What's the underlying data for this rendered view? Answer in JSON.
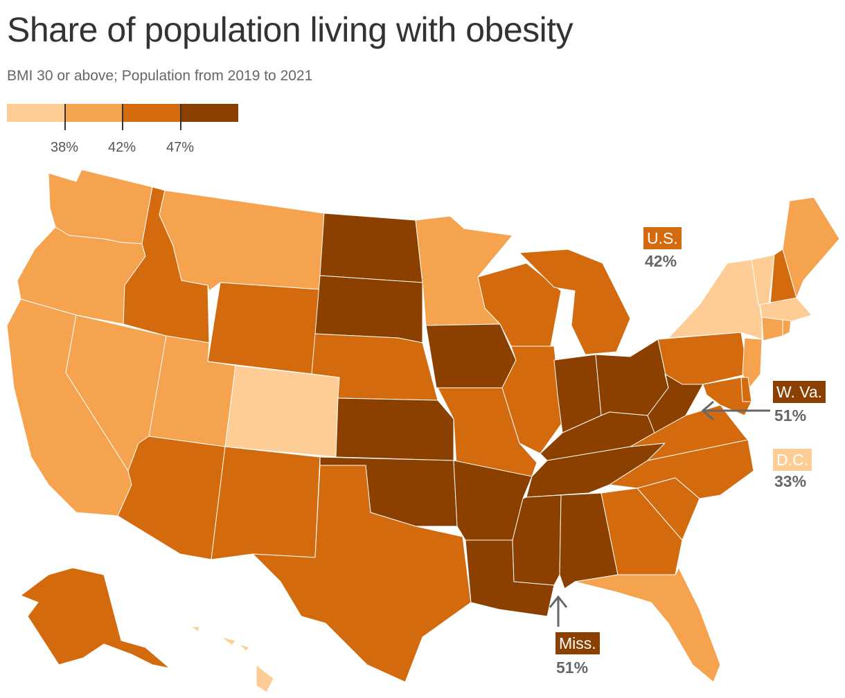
{
  "title": "Share of population living with obesity",
  "subtitle": "BMI 30 or above; Population from 2019 to 2021",
  "legend": {
    "colors": [
      "#fecd96",
      "#f6a350",
      "#d46a0e",
      "#8b4000"
    ],
    "thresholds": [
      "38%",
      "42%",
      "47%"
    ]
  },
  "callouts": {
    "us": {
      "label": "U.S.",
      "value": "42%",
      "color": "#d46a0e"
    },
    "wva": {
      "label": "W. Va.",
      "value": "51%",
      "color": "#8b4000"
    },
    "dc": {
      "label": "D.C.",
      "value": "33%",
      "color": "#fecd96"
    },
    "miss": {
      "label": "Miss.",
      "value": "51%",
      "color": "#8b4000"
    }
  },
  "states": {
    "WA": 1,
    "OR": 1,
    "CA": 1,
    "NV": 1,
    "ID": 2,
    "MT": 1,
    "WY": 2,
    "UT": 1,
    "CO": 0,
    "AZ": 2,
    "NM": 2,
    "ND": 3,
    "SD": 3,
    "NE": 2,
    "KS": 3,
    "OK": 3,
    "TX": 2,
    "MN": 1,
    "IA": 3,
    "MO": 2,
    "AR": 3,
    "LA": 3,
    "WI": 2,
    "IL": 2,
    "MI": 2,
    "IN": 3,
    "OH": 3,
    "KY": 3,
    "TN": 3,
    "MS": 3,
    "AL": 3,
    "GA": 2,
    "FL": 1,
    "SC": 2,
    "NC": 2,
    "VA": 2,
    "WV": 3,
    "PA": 2,
    "NY": 0,
    "VT": 0,
    "NH": 2,
    "ME": 1,
    "MA": 0,
    "CT": 1,
    "RI": 1,
    "NJ": 1,
    "DE": 2,
    "MD": 2,
    "AK": 2,
    "HI": 0
  }
}
